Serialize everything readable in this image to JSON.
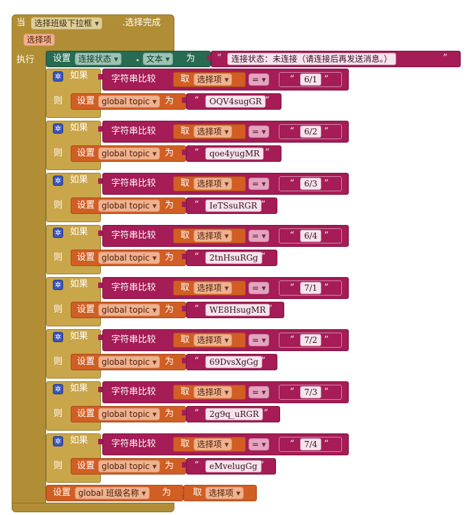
{
  "event": {
    "when_label": "当",
    "component": "选择班级下拉框",
    "event_name": ".选择完成",
    "param": "选择项",
    "do_label": "执行"
  },
  "set_status": {
    "set_label": "设置",
    "component": "连接状态",
    "dot": ".",
    "property": "文本",
    "to_label": "为",
    "value": "连接状态：未连接（请连接后再发送消息。）"
  },
  "if_blocks": [
    {
      "if_label": "如果",
      "compare_label": "字符串比较",
      "get_label": "取",
      "var": "选择项",
      "op": "=",
      "value": "6/1",
      "then_label": "则",
      "set_label": "设置",
      "global_var": "global topic",
      "to_label": "为",
      "topic": "OQV4sugGR"
    },
    {
      "if_label": "如果",
      "compare_label": "字符串比较",
      "get_label": "取",
      "var": "选择项",
      "op": "=",
      "value": "6/2",
      "then_label": "则",
      "set_label": "设置",
      "global_var": "global topic",
      "to_label": "为",
      "topic": "qoe4yugMR"
    },
    {
      "if_label": "如果",
      "compare_label": "字符串比较",
      "get_label": "取",
      "var": "选择项",
      "op": "=",
      "value": "6/3",
      "then_label": "则",
      "set_label": "设置",
      "global_var": "global topic",
      "to_label": "为",
      "topic": "IeTSsuRGR"
    },
    {
      "if_label": "如果",
      "compare_label": "字符串比较",
      "get_label": "取",
      "var": "选择项",
      "op": "=",
      "value": "6/4",
      "then_label": "则",
      "set_label": "设置",
      "global_var": "global topic",
      "to_label": "为",
      "topic": "2tnHsuRGg"
    },
    {
      "if_label": "如果",
      "compare_label": "字符串比较",
      "get_label": "取",
      "var": "选择项",
      "op": "=",
      "value": "7/1",
      "then_label": "则",
      "set_label": "设置",
      "global_var": "global topic",
      "to_label": "为",
      "topic": "WE8HsugMR"
    },
    {
      "if_label": "如果",
      "compare_label": "字符串比较",
      "get_label": "取",
      "var": "选择项",
      "op": "=",
      "value": "7/2",
      "then_label": "则",
      "set_label": "设置",
      "global_var": "global topic",
      "to_label": "为",
      "topic": "69DvsXgGg"
    },
    {
      "if_label": "如果",
      "compare_label": "字符串比较",
      "get_label": "取",
      "var": "选择项",
      "op": "=",
      "value": "7/3",
      "then_label": "则",
      "set_label": "设置",
      "global_var": "global topic",
      "to_label": "为",
      "topic": "2g9q_uRGR"
    },
    {
      "if_label": "如果",
      "compare_label": "字符串比较",
      "get_label": "取",
      "var": "选择项",
      "op": "=",
      "value": "7/4",
      "then_label": "则",
      "set_label": "设置",
      "global_var": "global topic",
      "to_label": "为",
      "topic": "eMvelugGg"
    }
  ],
  "set_class": {
    "set_label": "设置",
    "global_var": "global 班级名称",
    "to_label": "为",
    "get_label": "取",
    "var": "选择项"
  },
  "icons": {
    "gear": "gear-icon",
    "dropdown": "dropdown-caret-icon"
  },
  "colors": {
    "event": "#b18e35",
    "component_set": "#276b52",
    "text": "#a51c56",
    "variable": "#d15e23",
    "control": "#3b56b9"
  }
}
